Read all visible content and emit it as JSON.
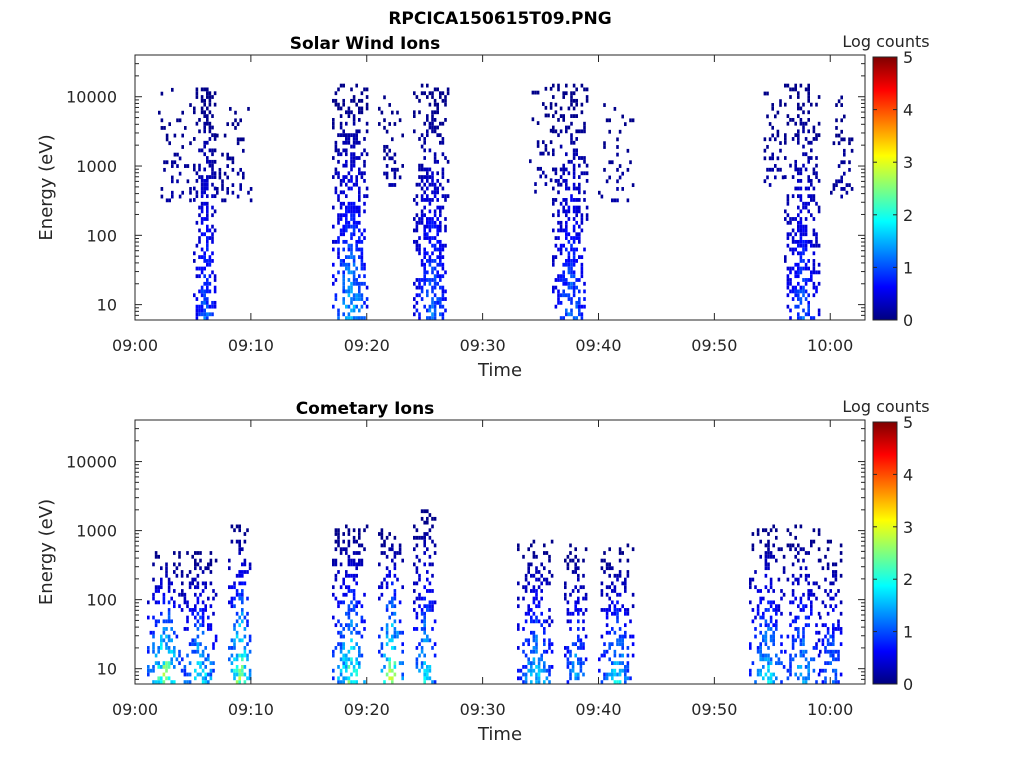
{
  "figure": {
    "title": "RPCICA150615T09.PNG"
  },
  "colorscale": [
    "#00007f",
    "#0000ff",
    "#007fff",
    "#00ffff",
    "#7fff7f",
    "#ffff00",
    "#ff7f00",
    "#ff0000",
    "#7f0000"
  ],
  "chart_data": [
    {
      "type": "heatmap",
      "title": "Solar Wind Ions",
      "xlabel": "Time",
      "ylabel": "Energy (eV)",
      "y_scale": "log",
      "xlim": [
        "09:00",
        "10:03"
      ],
      "ylim": [
        6,
        40000
      ],
      "x_ticks": [
        "09:00",
        "09:10",
        "09:20",
        "09:30",
        "09:40",
        "09:50",
        "10:00"
      ],
      "y_ticks": [
        10,
        100,
        1000,
        10000
      ],
      "y_tick_labels": [
        "10",
        "100",
        "1000",
        "10000"
      ],
      "colorbar": {
        "label": "Log counts",
        "range": [
          0,
          5
        ],
        "ticks": [
          "0",
          "1",
          "2",
          "3",
          "4",
          "5"
        ]
      },
      "bursts": [
        {
          "start": "09:02",
          "end": "09:05",
          "e_min": 300,
          "e_max": 15000,
          "peak_log_counts": 0.3,
          "density": 0.2
        },
        {
          "start": "09:05",
          "end": "09:07",
          "e_min": 6,
          "e_max": 15000,
          "peak_log_counts": 1.4,
          "density": 0.7
        },
        {
          "start": "09:07",
          "end": "09:10",
          "e_min": 300,
          "e_max": 8000,
          "peak_log_counts": 0.3,
          "density": 0.25
        },
        {
          "start": "09:17",
          "end": "09:20",
          "e_min": 6,
          "e_max": 15000,
          "peak_log_counts": 2.0,
          "density": 0.65
        },
        {
          "start": "09:21",
          "end": "09:23",
          "e_min": 500,
          "e_max": 10000,
          "peak_log_counts": 0.3,
          "density": 0.25
        },
        {
          "start": "09:24",
          "end": "09:27",
          "e_min": 6,
          "e_max": 15000,
          "peak_log_counts": 1.5,
          "density": 0.7
        },
        {
          "start": "09:34",
          "end": "09:36",
          "e_min": 400,
          "e_max": 15000,
          "peak_log_counts": 0.3,
          "density": 0.3
        },
        {
          "start": "09:36",
          "end": "09:39",
          "e_min": 6,
          "e_max": 15000,
          "peak_log_counts": 1.5,
          "density": 0.65
        },
        {
          "start": "09:40",
          "end": "09:43",
          "e_min": 300,
          "e_max": 8000,
          "peak_log_counts": 0.3,
          "density": 0.2
        },
        {
          "start": "09:54",
          "end": "09:56",
          "e_min": 500,
          "e_max": 15000,
          "peak_log_counts": 0.3,
          "density": 0.25
        },
        {
          "start": "09:56",
          "end": "09:59",
          "e_min": 6,
          "e_max": 15000,
          "peak_log_counts": 1.3,
          "density": 0.65
        },
        {
          "start": "10:00",
          "end": "10:02",
          "e_min": 300,
          "e_max": 10000,
          "peak_log_counts": 0.3,
          "density": 0.3
        }
      ]
    },
    {
      "type": "heatmap",
      "title": "Cometary Ions",
      "xlabel": "Time",
      "ylabel": "Energy (eV)",
      "y_scale": "log",
      "xlim": [
        "09:00",
        "10:03"
      ],
      "ylim": [
        6,
        40000
      ],
      "x_ticks": [
        "09:00",
        "09:10",
        "09:20",
        "09:30",
        "09:40",
        "09:50",
        "10:00"
      ],
      "y_ticks": [
        10,
        100,
        1000,
        10000
      ],
      "y_tick_labels": [
        "10",
        "100",
        "1000",
        "10000"
      ],
      "colorbar": {
        "label": "Log counts",
        "range": [
          0,
          5
        ],
        "ticks": [
          "0",
          "1",
          "2",
          "3",
          "4",
          "5"
        ]
      },
      "bursts": [
        {
          "start": "09:01",
          "end": "09:04",
          "e_min": 6,
          "e_max": 500,
          "peak_log_counts": 3.2,
          "density": 0.6
        },
        {
          "start": "09:04",
          "end": "09:07",
          "e_min": 6,
          "e_max": 500,
          "peak_log_counts": 2.5,
          "density": 0.55
        },
        {
          "start": "09:08",
          "end": "09:10",
          "e_min": 6,
          "e_max": 1200,
          "peak_log_counts": 3.3,
          "density": 0.6
        },
        {
          "start": "09:17",
          "end": "09:20",
          "e_min": 6,
          "e_max": 1200,
          "peak_log_counts": 2.8,
          "density": 0.55
        },
        {
          "start": "09:21",
          "end": "09:23",
          "e_min": 6,
          "e_max": 1000,
          "peak_log_counts": 3.4,
          "density": 0.55
        },
        {
          "start": "09:24",
          "end": "09:26",
          "e_min": 6,
          "e_max": 2000,
          "peak_log_counts": 2.3,
          "density": 0.55
        },
        {
          "start": "09:33",
          "end": "09:36",
          "e_min": 6,
          "e_max": 700,
          "peak_log_counts": 2.2,
          "density": 0.55
        },
        {
          "start": "09:37",
          "end": "09:39",
          "e_min": 6,
          "e_max": 600,
          "peak_log_counts": 2.0,
          "density": 0.5
        },
        {
          "start": "09:40",
          "end": "09:43",
          "e_min": 6,
          "e_max": 600,
          "peak_log_counts": 2.2,
          "density": 0.55
        },
        {
          "start": "09:53",
          "end": "09:56",
          "e_min": 6,
          "e_max": 1200,
          "peak_log_counts": 2.2,
          "density": 0.5
        },
        {
          "start": "09:56",
          "end": "09:59",
          "e_min": 6,
          "e_max": 1200,
          "peak_log_counts": 2.0,
          "density": 0.5
        },
        {
          "start": "09:59",
          "end": "10:01",
          "e_min": 6,
          "e_max": 700,
          "peak_log_counts": 1.8,
          "density": 0.5
        }
      ]
    }
  ]
}
